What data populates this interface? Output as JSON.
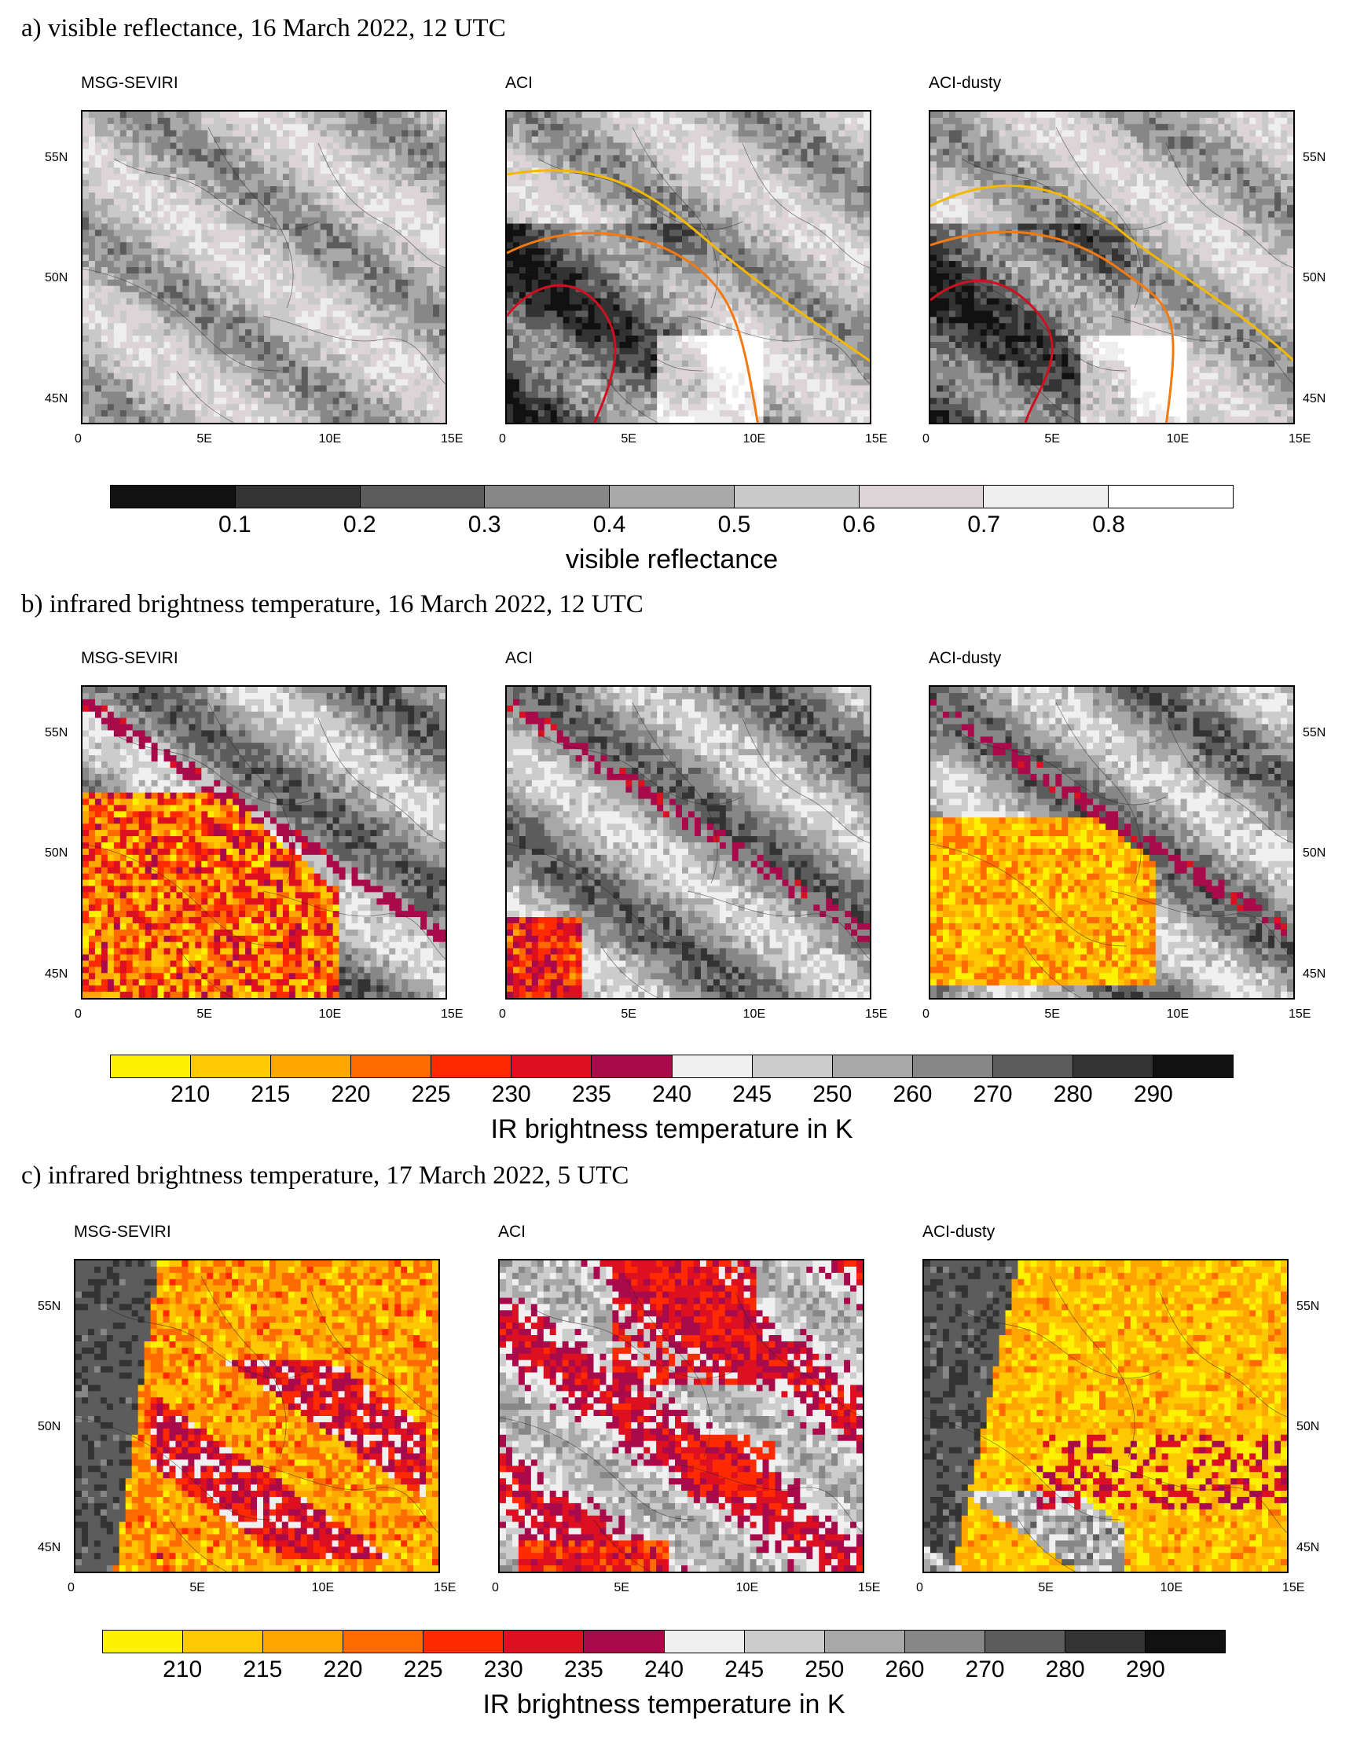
{
  "chart_data": [
    {
      "type": "heatmap",
      "title": "a) visible reflectance, 16 March 2022, 12 UTC",
      "variable": "visible reflectance",
      "panels": [
        {
          "name": "MSG-SEVIRI",
          "contours": false
        },
        {
          "name": "ACI",
          "contours": true
        },
        {
          "name": "ACI-dusty",
          "contours": true
        }
      ],
      "x_ticks": [
        "0",
        "5E",
        "10E",
        "15E"
      ],
      "y_ticks": [
        "45N",
        "50N",
        "55N"
      ],
      "xlim": [
        0,
        15
      ],
      "ylim": [
        44,
        57
      ],
      "colorbar": {
        "label": "visible reflectance",
        "ticks": [
          "0.1",
          "0.2",
          "0.3",
          "0.4",
          "0.5",
          "0.6",
          "0.7",
          "0.8"
        ],
        "colors": [
          "#111111",
          "#333333",
          "#5c5c5c",
          "#878787",
          "#a9a9a9",
          "#c9c9c9",
          "#dcd4d6",
          "#eeeeee",
          "#ffffff"
        ]
      },
      "contour_colors": [
        "#f5b800",
        "#f47a10",
        "#d01020"
      ]
    },
    {
      "type": "heatmap",
      "title": "b) infrared brightness temperature, 16 March 2022, 12 UTC",
      "variable": "IR brightness temperature in K",
      "panels": [
        {
          "name": "MSG-SEVIRI"
        },
        {
          "name": "ACI"
        },
        {
          "name": "ACI-dusty"
        }
      ],
      "x_ticks": [
        "0",
        "5E",
        "10E",
        "15E"
      ],
      "y_ticks": [
        "45N",
        "50N",
        "55N"
      ],
      "xlim": [
        0,
        15
      ],
      "ylim": [
        44,
        57
      ],
      "colorbar": {
        "label": "IR brightness temperature in K",
        "ticks": [
          "210",
          "215",
          "220",
          "225",
          "230",
          "235",
          "240",
          "245",
          "250",
          "260",
          "270",
          "280",
          "290"
        ],
        "colors": [
          "#fff200",
          "#ffc800",
          "#ffa600",
          "#ff6b00",
          "#ff2a00",
          "#dc1020",
          "#a80a4c",
          "#f0f0f0",
          "#cccccc",
          "#a8a8a8",
          "#878787",
          "#5c5c5c",
          "#333333",
          "#111111"
        ]
      }
    },
    {
      "type": "heatmap",
      "title": "c) infrared brightness temperature, 17 March 2022, 5 UTC",
      "variable": "IR brightness temperature in K",
      "panels": [
        {
          "name": "MSG-SEVIRI"
        },
        {
          "name": "ACI"
        },
        {
          "name": "ACI-dusty"
        }
      ],
      "x_ticks": [
        "0",
        "5E",
        "10E",
        "15E"
      ],
      "y_ticks": [
        "45N",
        "50N",
        "55N"
      ],
      "xlim": [
        0,
        15
      ],
      "ylim": [
        44,
        57
      ],
      "colorbar": {
        "label": "IR brightness temperature in K",
        "ticks": [
          "210",
          "215",
          "220",
          "225",
          "230",
          "235",
          "240",
          "245",
          "250",
          "260",
          "270",
          "280",
          "290"
        ],
        "colors": [
          "#fff200",
          "#ffc800",
          "#ffa600",
          "#ff6b00",
          "#ff2a00",
          "#dc1020",
          "#a80a4c",
          "#f0f0f0",
          "#cccccc",
          "#a8a8a8",
          "#878787",
          "#5c5c5c",
          "#333333",
          "#111111"
        ]
      }
    }
  ]
}
